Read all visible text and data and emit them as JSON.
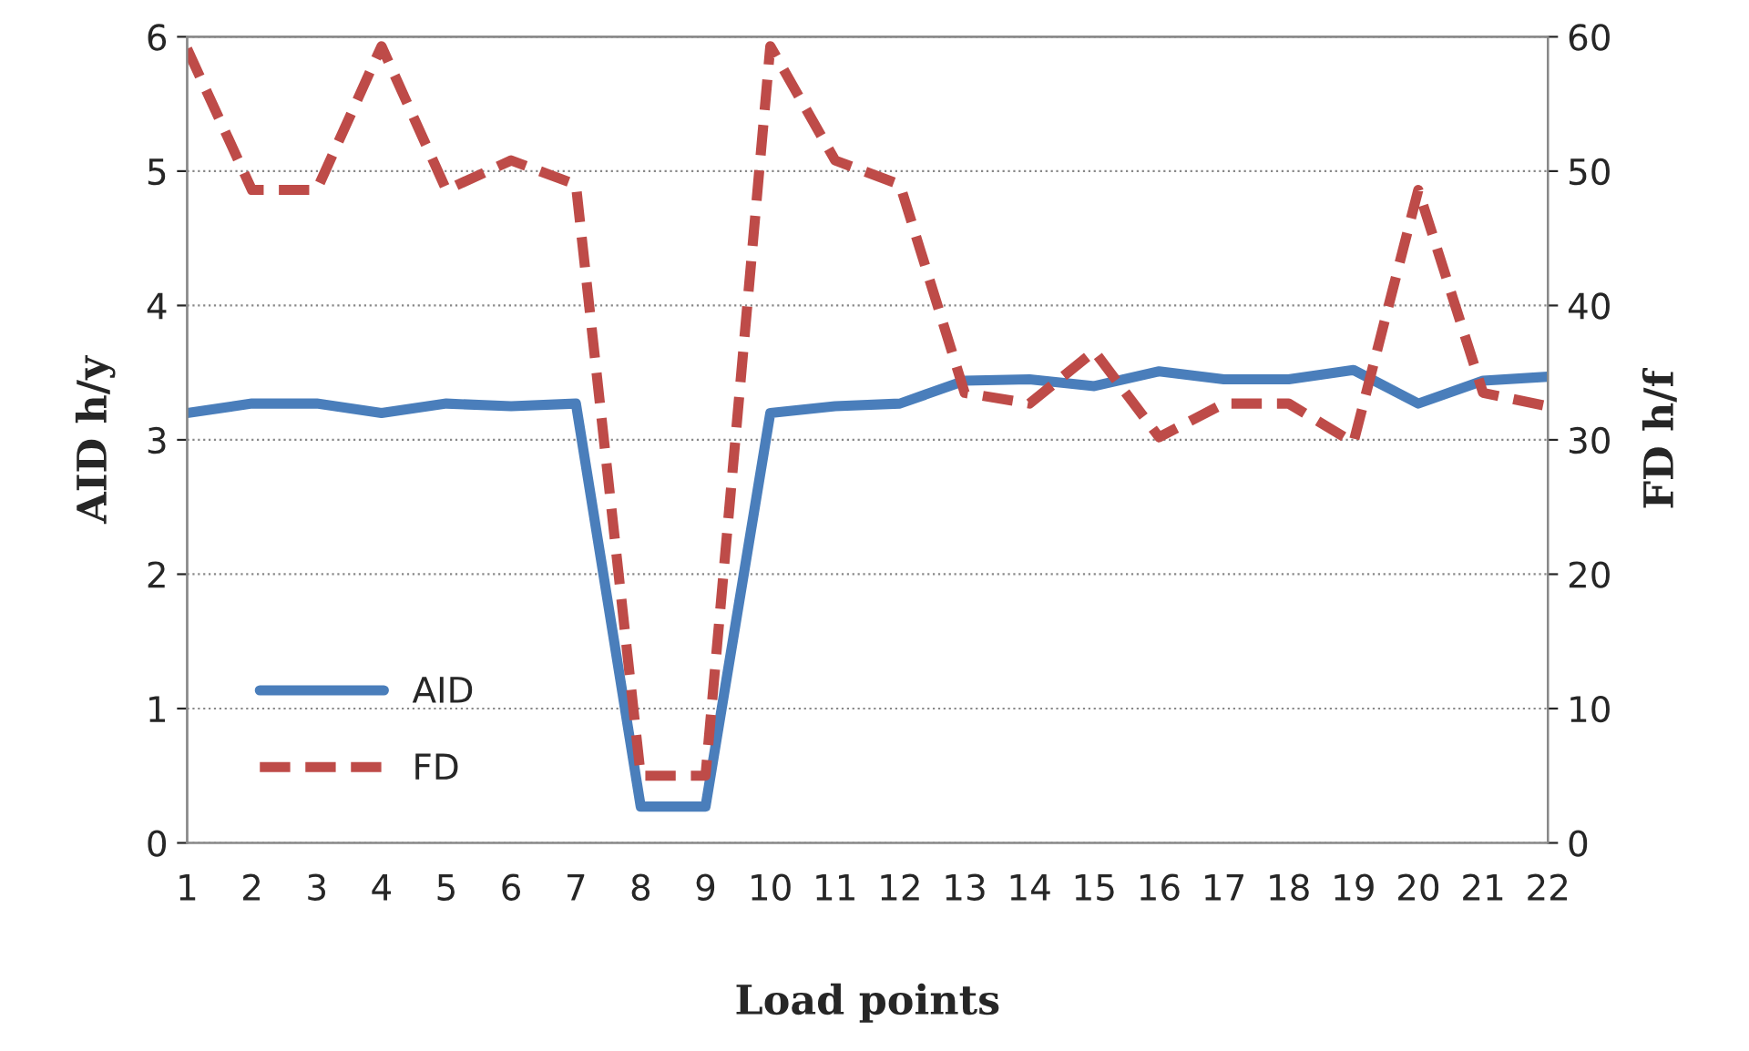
{
  "chart_data": {
    "type": "line",
    "xlabel": "Load points",
    "ylabel": "AID h/y",
    "y2label": "FD h/f",
    "categories": [
      "1",
      "2",
      "3",
      "4",
      "5",
      "6",
      "7",
      "8",
      "9",
      "10",
      "11",
      "12",
      "13",
      "14",
      "15",
      "16",
      "17",
      "18",
      "19",
      "20",
      "21",
      "22"
    ],
    "series": [
      {
        "name": "AID",
        "color": "#4a7ebb",
        "line_style": "solid",
        "values": [
          3.2,
          3.27,
          3.27,
          3.2,
          3.27,
          3.25,
          3.27,
          0.27,
          0.27,
          3.2,
          3.25,
          3.27,
          3.44,
          3.45,
          3.4,
          3.51,
          3.45,
          3.45,
          3.52,
          3.27,
          3.44,
          3.47
        ]
      },
      {
        "name": "FD",
        "color": "#be4b48",
        "line_style": "dashed",
        "axis": "y2",
        "values": [
          59.1,
          48.6,
          48.6,
          59.3,
          48.6,
          50.8,
          49,
          5,
          5,
          59.3,
          50.8,
          49,
          33.5,
          32.7,
          36.6,
          30.2,
          32.7,
          32.7,
          29.8,
          48.6,
          33.5,
          32.5
        ]
      }
    ],
    "ylim": [
      0,
      6
    ],
    "yticks": [
      0,
      1,
      2,
      3,
      4,
      5,
      6
    ],
    "y2lim": [
      0,
      60
    ],
    "y2ticks": [
      0,
      10,
      20,
      30,
      40,
      50,
      60
    ],
    "grid": "y",
    "legend": "bottom left",
    "marker": "none"
  }
}
